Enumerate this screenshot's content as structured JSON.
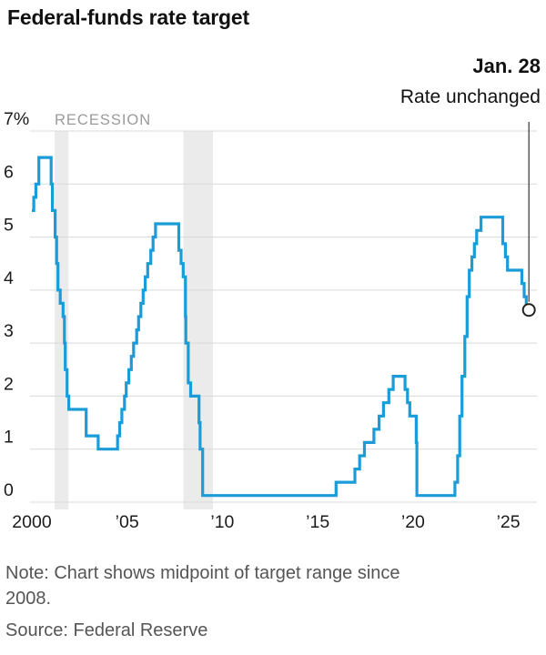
{
  "title": "Federal-funds rate target",
  "annotation": {
    "date": "Jan. 28",
    "label": "Rate unchanged"
  },
  "footer": {
    "note_line1": "Note: Chart shows midpoint of target range since",
    "note_line2": "2008.",
    "source": "Source: Federal Reserve"
  },
  "chart_data": {
    "type": "line",
    "step": true,
    "title": "Federal-funds rate target",
    "unit": "percent",
    "x_domain": [
      2000,
      2026.5
    ],
    "ylim": [
      0,
      7
    ],
    "grid": true,
    "legend": "none",
    "line_color": "#1a9cd8",
    "grid_color": "#d9d9d9",
    "recession_band_color": "#ebebeb",
    "recession_label": "RECESSION",
    "recession_label_color": "#9a9a9a",
    "annotation_color": "#333333",
    "recessions": [
      [
        2001.2,
        2001.92
      ],
      [
        2007.95,
        2009.5
      ]
    ],
    "y_ticks": [
      {
        "value": 7,
        "label": "7%"
      },
      {
        "value": 6,
        "label": "6"
      },
      {
        "value": 5,
        "label": "5"
      },
      {
        "value": 4,
        "label": "4"
      },
      {
        "value": 3,
        "label": "3"
      },
      {
        "value": 2,
        "label": "2"
      },
      {
        "value": 1,
        "label": "1"
      },
      {
        "value": 0,
        "label": "0"
      }
    ],
    "x_ticks": [
      {
        "value": 2000,
        "label": "2000"
      },
      {
        "value": 2005,
        "label": "’05"
      },
      {
        "value": 2010,
        "label": "’10"
      },
      {
        "value": 2015,
        "label": "’15"
      },
      {
        "value": 2020,
        "label": "’20"
      },
      {
        "value": 2025,
        "label": "’25"
      }
    ],
    "series": [
      {
        "name": "Federal-funds rate target (midpoint of range since 2008)",
        "points": [
          [
            2000.0,
            5.5
          ],
          [
            2000.1,
            5.75
          ],
          [
            2000.21,
            6.0
          ],
          [
            2000.37,
            6.5
          ],
          [
            2001.01,
            6.0
          ],
          [
            2001.08,
            5.5
          ],
          [
            2001.22,
            5.0
          ],
          [
            2001.3,
            4.5
          ],
          [
            2001.37,
            4.0
          ],
          [
            2001.49,
            3.75
          ],
          [
            2001.64,
            3.5
          ],
          [
            2001.71,
            3.0
          ],
          [
            2001.75,
            2.5
          ],
          [
            2001.85,
            2.0
          ],
          [
            2001.94,
            1.75
          ],
          [
            2002.85,
            1.25
          ],
          [
            2003.48,
            1.0
          ],
          [
            2004.5,
            1.25
          ],
          [
            2004.61,
            1.5
          ],
          [
            2004.72,
            1.75
          ],
          [
            2004.86,
            2.0
          ],
          [
            2004.95,
            2.25
          ],
          [
            2005.09,
            2.5
          ],
          [
            2005.22,
            2.75
          ],
          [
            2005.34,
            3.0
          ],
          [
            2005.5,
            3.25
          ],
          [
            2005.6,
            3.5
          ],
          [
            2005.72,
            3.75
          ],
          [
            2005.84,
            4.0
          ],
          [
            2005.95,
            4.25
          ],
          [
            2006.08,
            4.5
          ],
          [
            2006.24,
            4.75
          ],
          [
            2006.36,
            5.0
          ],
          [
            2006.49,
            5.25
          ],
          [
            2007.71,
            4.75
          ],
          [
            2007.83,
            4.5
          ],
          [
            2007.94,
            4.25
          ],
          [
            2008.06,
            3.5
          ],
          [
            2008.08,
            3.0
          ],
          [
            2008.21,
            2.25
          ],
          [
            2008.33,
            2.0
          ],
          [
            2008.77,
            1.5
          ],
          [
            2008.83,
            1.0
          ],
          [
            2008.96,
            0.125
          ],
          [
            2015.96,
            0.375
          ],
          [
            2016.95,
            0.625
          ],
          [
            2017.2,
            0.875
          ],
          [
            2017.45,
            1.125
          ],
          [
            2017.95,
            1.375
          ],
          [
            2018.22,
            1.625
          ],
          [
            2018.45,
            1.875
          ],
          [
            2018.73,
            2.125
          ],
          [
            2018.96,
            2.375
          ],
          [
            2019.58,
            2.125
          ],
          [
            2019.71,
            1.875
          ],
          [
            2019.83,
            1.625
          ],
          [
            2020.17,
            1.125
          ],
          [
            2020.2,
            0.125
          ],
          [
            2022.2,
            0.375
          ],
          [
            2022.34,
            0.875
          ],
          [
            2022.45,
            1.625
          ],
          [
            2022.57,
            2.375
          ],
          [
            2022.72,
            3.125
          ],
          [
            2022.84,
            3.875
          ],
          [
            2022.95,
            4.375
          ],
          [
            2023.09,
            4.625
          ],
          [
            2023.22,
            4.875
          ],
          [
            2023.34,
            5.125
          ],
          [
            2023.57,
            5.375
          ],
          [
            2024.71,
            4.875
          ],
          [
            2024.85,
            4.625
          ],
          [
            2024.96,
            4.375
          ],
          [
            2025.71,
            4.125
          ],
          [
            2025.83,
            3.875
          ],
          [
            2025.94,
            3.625
          ],
          [
            2026.08,
            3.625
          ]
        ]
      }
    ],
    "endpoint": {
      "x": 2026.08,
      "value": 3.625,
      "label": "Jan. 28 — Rate unchanged",
      "marker": "open-circle"
    }
  }
}
